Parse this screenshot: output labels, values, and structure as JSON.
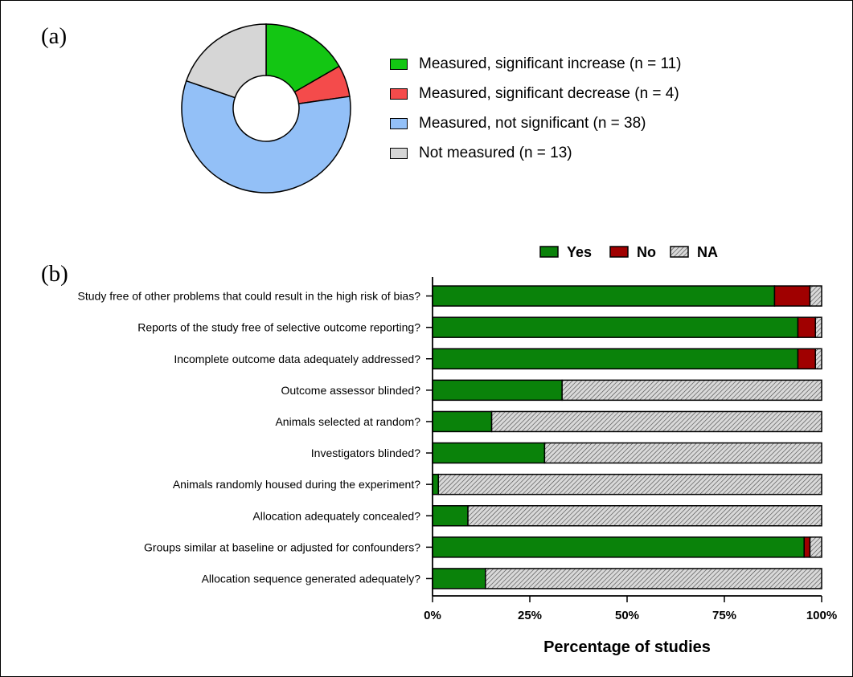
{
  "panel_labels": {
    "a": "(a)",
    "b": "(b)"
  },
  "chart_data": [
    {
      "type": "pie",
      "style": "donut",
      "slices": [
        {
          "label": "Measured, significant increase (n = 11)",
          "value": 11,
          "color": "#13c613"
        },
        {
          "label": "Measured, significant decrease (n = 4)",
          "value": 4,
          "color": "#f44b4b"
        },
        {
          "label": "Measured, not significant (n = 38)",
          "value": 38,
          "color": "#93c0f7"
        },
        {
          "label": "Not measured (n = 13)",
          "value": 13,
          "color": "#d6d6d6"
        }
      ],
      "legend_position": "right"
    },
    {
      "type": "bar",
      "orientation": "horizontal",
      "stacked": true,
      "categories": [
        "Study free of other problems that could result in the high risk of bias?",
        "Reports of the study free of selective outcome reporting?",
        "Incomplete outcome data adequately addressed?",
        "Outcome assessor blinded?",
        "Animals selected at random?",
        "Investigators blinded?",
        "Animals randomly housed during the experiment?",
        "Allocation adequately concealed?",
        "Groups similar at baseline or adjusted for confounders?",
        "Allocation sequence generated adequately?"
      ],
      "series": [
        {
          "name": "Yes",
          "color": "#0a820a",
          "values": [
            87.9,
            93.9,
            93.9,
            33.3,
            15.2,
            28.8,
            1.5,
            9.1,
            95.5,
            13.6
          ]
        },
        {
          "name": "No",
          "color": "#a00000",
          "values": [
            9.1,
            4.5,
            4.5,
            0,
            0,
            0,
            0,
            0,
            1.5,
            0
          ]
        },
        {
          "name": "NA",
          "color": "#cccccc",
          "pattern": "hatched",
          "values": [
            3.0,
            1.6,
            1.6,
            66.7,
            84.8,
            71.2,
            98.5,
            90.9,
            3.0,
            86.4
          ]
        }
      ],
      "xlabel": "Percentage of studies",
      "x_ticks": [
        "0%",
        "25%",
        "50%",
        "75%",
        "100%"
      ],
      "xlim": [
        0,
        100
      ],
      "legend_position": "top"
    }
  ]
}
